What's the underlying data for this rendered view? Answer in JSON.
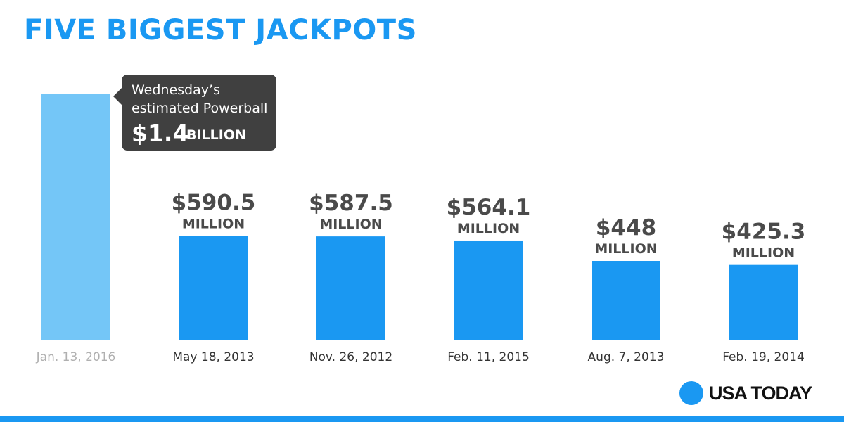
{
  "title": "FIVE BIGGEST JACKPOTS",
  "callout": {
    "line1": "Wednesday’s",
    "line2": "estimated Powerball",
    "amount": "$1.4",
    "unit": "BILLION"
  },
  "brand": "USA TODAY",
  "colors": {
    "bar": "#1a98f2",
    "highlight_bar": "#74c6f7",
    "title": "#1a98f2",
    "value_label": "#4a4a4a",
    "date_label": "#333333",
    "highlight_date_label": "#b0b0b0",
    "callout_bg": "#404040"
  },
  "chart_data": {
    "type": "bar",
    "title": "FIVE BIGGEST JACKPOTS",
    "unit": "million dollars",
    "categories": [
      "Jan. 13, 2016",
      "May 18, 2013",
      "Nov. 26, 2012",
      "Feb. 11, 2015",
      "Aug. 7, 2013",
      "Feb. 19, 2014"
    ],
    "values": [
      1400,
      590.5,
      587.5,
      564.1,
      448,
      425.3
    ],
    "value_labels": [
      "",
      "$590.5",
      "$587.5",
      "$564.1",
      "$448",
      "$425.3"
    ],
    "value_units": [
      "",
      "MILLION",
      "MILLION",
      "MILLION",
      "MILLION",
      "MILLION"
    ],
    "highlight_index": 0,
    "ylim": [
      0,
      1400
    ],
    "grid": false,
    "legend": "none"
  }
}
